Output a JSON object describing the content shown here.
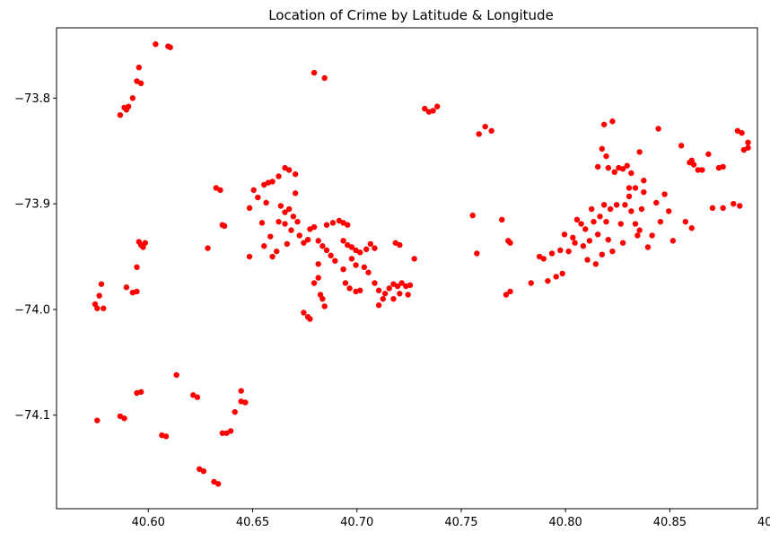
{
  "chart_data": {
    "type": "scatter",
    "title": "Location of Crime by Latitude & Longitude",
    "xlabel": "",
    "ylabel": "",
    "xlim": [
      40.556,
      40.892
    ],
    "ylim": [
      -74.1885,
      -73.7335
    ],
    "xticks": [
      40.6,
      40.65,
      40.7,
      40.75,
      40.8,
      40.85,
      40.9
    ],
    "xtick_labels": [
      "40.60",
      "40.65",
      "40.70",
      "40.75",
      "40.80",
      "40.85",
      "40.90"
    ],
    "yticks": [
      -73.8,
      -73.9,
      -74.0,
      -74.1
    ],
    "ytick_labels": [
      "−73.8",
      "−73.9",
      "−74.0",
      "−74.1"
    ],
    "grid": false,
    "legend": "none",
    "marker_color": "#ff0000",
    "series": [
      {
        "points": [
          [
            40.6035,
            -73.749
          ],
          [
            40.6095,
            -73.751
          ],
          [
            40.6105,
            -73.752
          ],
          [
            40.5955,
            -73.771
          ],
          [
            40.5965,
            -73.786
          ],
          [
            40.5945,
            -73.784
          ],
          [
            40.5925,
            -73.8
          ],
          [
            40.5885,
            -73.809
          ],
          [
            40.5865,
            -73.816
          ],
          [
            40.5895,
            -73.811
          ],
          [
            40.5905,
            -73.808
          ],
          [
            40.5745,
            -73.995
          ],
          [
            40.5755,
            -73.999
          ],
          [
            40.5765,
            -73.987
          ],
          [
            40.5775,
            -73.976
          ],
          [
            40.5785,
            -73.999
          ],
          [
            40.5895,
            -73.979
          ],
          [
            40.5925,
            -73.984
          ],
          [
            40.5945,
            -73.983
          ],
          [
            40.5945,
            -73.96
          ],
          [
            40.5955,
            -73.936
          ],
          [
            40.5965,
            -73.939
          ],
          [
            40.5985,
            -73.937
          ],
          [
            40.5975,
            -73.941
          ],
          [
            40.5755,
            -74.105
          ],
          [
            40.5865,
            -74.101
          ],
          [
            40.5885,
            -74.103
          ],
          [
            40.5945,
            -74.079
          ],
          [
            40.5965,
            -74.078
          ],
          [
            40.6065,
            -74.119
          ],
          [
            40.6085,
            -74.12
          ],
          [
            40.6135,
            -74.062
          ],
          [
            40.6215,
            -74.081
          ],
          [
            40.6235,
            -74.083
          ],
          [
            40.6245,
            -74.151
          ],
          [
            40.6265,
            -74.153
          ],
          [
            40.6315,
            -74.163
          ],
          [
            40.6335,
            -74.165
          ],
          [
            40.6355,
            -74.117
          ],
          [
            40.6375,
            -74.117
          ],
          [
            40.6395,
            -74.115
          ],
          [
            40.6415,
            -74.097
          ],
          [
            40.6445,
            -74.077
          ],
          [
            40.6445,
            -74.087
          ],
          [
            40.6465,
            -74.088
          ],
          [
            40.6325,
            -73.885
          ],
          [
            40.6345,
            -73.887
          ],
          [
            40.6355,
            -73.92
          ],
          [
            40.6365,
            -73.921
          ],
          [
            40.6285,
            -73.942
          ],
          [
            40.6485,
            -73.904
          ],
          [
            40.6505,
            -73.887
          ],
          [
            40.6525,
            -73.894
          ],
          [
            40.6555,
            -73.882
          ],
          [
            40.6575,
            -73.88
          ],
          [
            40.6595,
            -73.879
          ],
          [
            40.6625,
            -73.874
          ],
          [
            40.6655,
            -73.866
          ],
          [
            40.6675,
            -73.868
          ],
          [
            40.6705,
            -73.872
          ],
          [
            40.6565,
            -73.899
          ],
          [
            40.6545,
            -73.918
          ],
          [
            40.6585,
            -73.931
          ],
          [
            40.6555,
            -73.94
          ],
          [
            40.6595,
            -73.95
          ],
          [
            40.6615,
            -73.945
          ],
          [
            40.6485,
            -73.95
          ],
          [
            40.6635,
            -73.902
          ],
          [
            40.6655,
            -73.908
          ],
          [
            40.6675,
            -73.905
          ],
          [
            40.6695,
            -73.912
          ],
          [
            40.6715,
            -73.917
          ],
          [
            40.6655,
            -73.919
          ],
          [
            40.6685,
            -73.925
          ],
          [
            40.6725,
            -73.93
          ],
          [
            40.6745,
            -73.937
          ],
          [
            40.6765,
            -73.934
          ],
          [
            40.6705,
            -73.89
          ],
          [
            40.6665,
            -73.938
          ],
          [
            40.6625,
            -73.917
          ],
          [
            40.6745,
            -74.003
          ],
          [
            40.6765,
            -74.007
          ],
          [
            40.6775,
            -74.009
          ],
          [
            40.6795,
            -73.975
          ],
          [
            40.6825,
            -73.986
          ],
          [
            40.6835,
            -73.99
          ],
          [
            40.6815,
            -73.97
          ],
          [
            40.6845,
            -73.997
          ],
          [
            40.6795,
            -73.776
          ],
          [
            40.6845,
            -73.781
          ],
          [
            40.6775,
            -73.924
          ],
          [
            40.6795,
            -73.922
          ],
          [
            40.6815,
            -73.935
          ],
          [
            40.6835,
            -73.94
          ],
          [
            40.6855,
            -73.944
          ],
          [
            40.6875,
            -73.949
          ],
          [
            40.6895,
            -73.954
          ],
          [
            40.6815,
            -73.957
          ],
          [
            40.6855,
            -73.92
          ],
          [
            40.6885,
            -73.918
          ],
          [
            40.6915,
            -73.916
          ],
          [
            40.6935,
            -73.918
          ],
          [
            40.6955,
            -73.92
          ],
          [
            40.6935,
            -73.935
          ],
          [
            40.6955,
            -73.939
          ],
          [
            40.6975,
            -73.941
          ],
          [
            40.6995,
            -73.944
          ],
          [
            40.7015,
            -73.946
          ],
          [
            40.6975,
            -73.952
          ],
          [
            40.6995,
            -73.958
          ],
          [
            40.6935,
            -73.962
          ],
          [
            40.6945,
            -73.975
          ],
          [
            40.6965,
            -73.98
          ],
          [
            40.6995,
            -73.983
          ],
          [
            40.7015,
            -73.982
          ],
          [
            40.7035,
            -73.96
          ],
          [
            40.7055,
            -73.965
          ],
          [
            40.7065,
            -73.938
          ],
          [
            40.7045,
            -73.943
          ],
          [
            40.7085,
            -73.942
          ],
          [
            40.7085,
            -73.975
          ],
          [
            40.7105,
            -73.982
          ],
          [
            40.7105,
            -73.996
          ],
          [
            40.7125,
            -73.99
          ],
          [
            40.7135,
            -73.985
          ],
          [
            40.7155,
            -73.98
          ],
          [
            40.7175,
            -73.976
          ],
          [
            40.7195,
            -73.978
          ],
          [
            40.7215,
            -73.975
          ],
          [
            40.7235,
            -73.978
          ],
          [
            40.7255,
            -73.977
          ],
          [
            40.7175,
            -73.99
          ],
          [
            40.7205,
            -73.985
          ],
          [
            40.7245,
            -73.986
          ],
          [
            40.7185,
            -73.937
          ],
          [
            40.7205,
            -73.939
          ],
          [
            40.7275,
            -73.952
          ],
          [
            40.7325,
            -73.81
          ],
          [
            40.7345,
            -73.813
          ],
          [
            40.7365,
            -73.812
          ],
          [
            40.7385,
            -73.808
          ],
          [
            40.7555,
            -73.911
          ],
          [
            40.7575,
            -73.947
          ],
          [
            40.7585,
            -73.834
          ],
          [
            40.7615,
            -73.827
          ],
          [
            40.7645,
            -73.831
          ],
          [
            40.7695,
            -73.915
          ],
          [
            40.7725,
            -73.935
          ],
          [
            40.7735,
            -73.937
          ],
          [
            40.7715,
            -73.986
          ],
          [
            40.7735,
            -73.983
          ],
          [
            40.7835,
            -73.975
          ],
          [
            40.7875,
            -73.95
          ],
          [
            40.7895,
            -73.952
          ],
          [
            40.7915,
            -73.973
          ],
          [
            40.7935,
            -73.947
          ],
          [
            40.7955,
            -73.969
          ],
          [
            40.7975,
            -73.944
          ],
          [
            40.7985,
            -73.966
          ],
          [
            40.7995,
            -73.929
          ],
          [
            40.8015,
            -73.945
          ],
          [
            40.8035,
            -73.932
          ],
          [
            40.8055,
            -73.915
          ],
          [
            40.8045,
            -73.937
          ],
          [
            40.8075,
            -73.919
          ],
          [
            40.8085,
            -73.94
          ],
          [
            40.8095,
            -73.924
          ],
          [
            40.8105,
            -73.953
          ],
          [
            40.8115,
            -73.935
          ],
          [
            40.8125,
            -73.905
          ],
          [
            40.8135,
            -73.917
          ],
          [
            40.8145,
            -73.957
          ],
          [
            40.8155,
            -73.929
          ],
          [
            40.8165,
            -73.912
          ],
          [
            40.8175,
            -73.948
          ],
          [
            40.8185,
            -73.901
          ],
          [
            40.8195,
            -73.917
          ],
          [
            40.8205,
            -73.934
          ],
          [
            40.8215,
            -73.905
          ],
          [
            40.8225,
            -73.945
          ],
          [
            40.8245,
            -73.901
          ],
          [
            40.8265,
            -73.919
          ],
          [
            40.8275,
            -73.937
          ],
          [
            40.8285,
            -73.901
          ],
          [
            40.8305,
            -73.893
          ],
          [
            40.8315,
            -73.907
          ],
          [
            40.8335,
            -73.919
          ],
          [
            40.8345,
            -73.93
          ],
          [
            40.8355,
            -73.925
          ],
          [
            40.8365,
            -73.905
          ],
          [
            40.8375,
            -73.889
          ],
          [
            40.8395,
            -73.941
          ],
          [
            40.8415,
            -73.93
          ],
          [
            40.8435,
            -73.899
          ],
          [
            40.8455,
            -73.917
          ],
          [
            40.8475,
            -73.891
          ],
          [
            40.8495,
            -73.907
          ],
          [
            40.8515,
            -73.935
          ],
          [
            40.8575,
            -73.917
          ],
          [
            40.8605,
            -73.923
          ],
          [
            40.8155,
            -73.865
          ],
          [
            40.8175,
            -73.848
          ],
          [
            40.8185,
            -73.825
          ],
          [
            40.8195,
            -73.855
          ],
          [
            40.8205,
            -73.866
          ],
          [
            40.8225,
            -73.822
          ],
          [
            40.8235,
            -73.87
          ],
          [
            40.8255,
            -73.866
          ],
          [
            40.8275,
            -73.867
          ],
          [
            40.8295,
            -73.864
          ],
          [
            40.8305,
            -73.885
          ],
          [
            40.8315,
            -73.871
          ],
          [
            40.8335,
            -73.885
          ],
          [
            40.8355,
            -73.851
          ],
          [
            40.8375,
            -73.878
          ],
          [
            40.8445,
            -73.829
          ],
          [
            40.8555,
            -73.845
          ],
          [
            40.8595,
            -73.861
          ],
          [
            40.8605,
            -73.859
          ],
          [
            40.8615,
            -73.863
          ],
          [
            40.8635,
            -73.868
          ],
          [
            40.8655,
            -73.868
          ],
          [
            40.8685,
            -73.853
          ],
          [
            40.8705,
            -73.904
          ],
          [
            40.8735,
            -73.866
          ],
          [
            40.8755,
            -73.904
          ],
          [
            40.8755,
            -73.865
          ],
          [
            40.8805,
            -73.9
          ],
          [
            40.8825,
            -73.831
          ],
          [
            40.8835,
            -73.902
          ],
          [
            40.8845,
            -73.833
          ],
          [
            40.8855,
            -73.849
          ],
          [
            40.8875,
            -73.842
          ],
          [
            40.8875,
            -73.847
          ]
        ]
      }
    ]
  }
}
